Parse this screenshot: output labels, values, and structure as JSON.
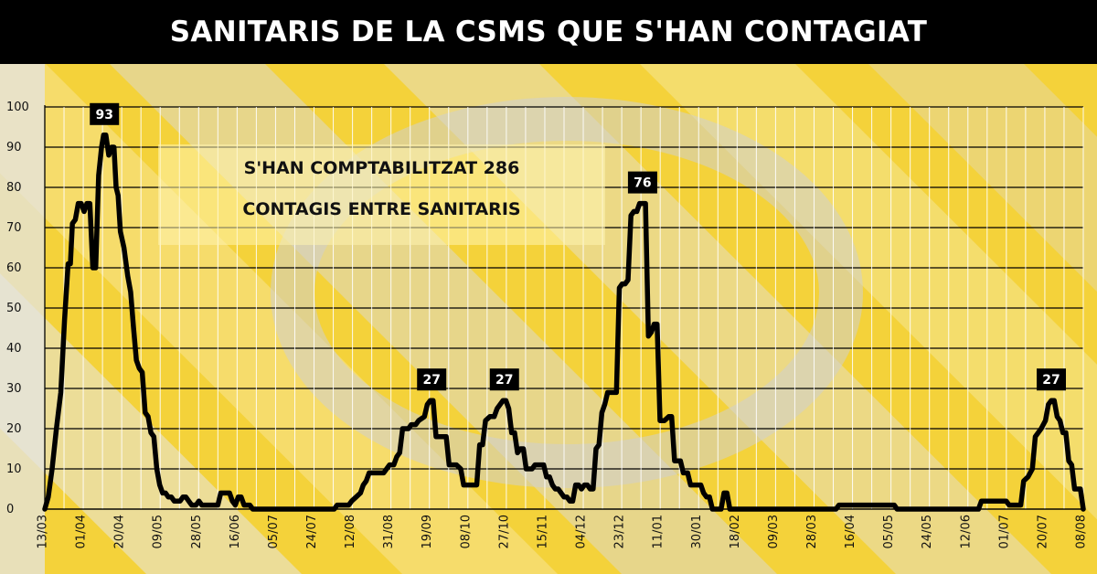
{
  "title": "SANITARIS DE LA CSMS QUE S'HAN CONTAGIAT",
  "note": {
    "line1": "S'HAN COMPTABILITZAT 286",
    "line2": "CONTAGIS ENTRE SANITARIS"
  },
  "colors": {
    "background": "#f4d23a",
    "title_bar": "#000000",
    "line": "#000000",
    "label_box": "#000000"
  },
  "chart_data": {
    "type": "line",
    "title": "SANITARIS DE LA CSMS QUE S'HAN CONTAGIAT",
    "xlabel": "",
    "ylabel": "",
    "ylim": [
      0,
      100
    ],
    "yticks": [
      0,
      10,
      20,
      30,
      40,
      50,
      60,
      70,
      80,
      90,
      100
    ],
    "grid": true,
    "x_tick_labels": [
      "13/03",
      "01/04",
      "20/04",
      "09/05",
      "28/05",
      "16/06",
      "05/07",
      "24/07",
      "12/08",
      "31/08",
      "19/09",
      "08/10",
      "27/10",
      "15/11",
      "04/12",
      "23/12",
      "11/01",
      "30/01",
      "18/02",
      "09/03",
      "28/03",
      "16/04",
      "05/05",
      "24/05",
      "12/06",
      "01/07",
      "20/07",
      "08/08"
    ],
    "points": [
      [
        0,
        0
      ],
      [
        0.12,
        3
      ],
      [
        0.25,
        10
      ],
      [
        0.4,
        20
      ],
      [
        0.55,
        29
      ],
      [
        0.68,
        47
      ],
      [
        0.8,
        61
      ],
      [
        0.88,
        61
      ],
      [
        0.95,
        71
      ],
      [
        1.05,
        72
      ],
      [
        1.15,
        76
      ],
      [
        1.25,
        76
      ],
      [
        1.35,
        74
      ],
      [
        1.45,
        76
      ],
      [
        1.55,
        76
      ],
      [
        1.65,
        60
      ],
      [
        1.75,
        60
      ],
      [
        1.85,
        83
      ],
      [
        1.95,
        90
      ],
      [
        2.02,
        93
      ],
      [
        2.1,
        93
      ],
      [
        2.2,
        88
      ],
      [
        2.3,
        90
      ],
      [
        2.38,
        90
      ],
      [
        2.45,
        80
      ],
      [
        2.52,
        78
      ],
      [
        2.6,
        69
      ],
      [
        2.72,
        65
      ],
      [
        2.85,
        58
      ],
      [
        2.95,
        54
      ],
      [
        3.05,
        45
      ],
      [
        3.15,
        37
      ],
      [
        3.25,
        35
      ],
      [
        3.35,
        34
      ],
      [
        3.45,
        24
      ],
      [
        3.55,
        23
      ],
      [
        3.65,
        19
      ],
      [
        3.75,
        18
      ],
      [
        3.85,
        10
      ],
      [
        3.95,
        6
      ],
      [
        4.05,
        4
      ],
      [
        4.15,
        4
      ],
      [
        4.25,
        3
      ],
      [
        4.35,
        3
      ],
      [
        4.45,
        2
      ],
      [
        4.55,
        2
      ],
      [
        4.65,
        2
      ],
      [
        4.75,
        3
      ],
      [
        4.85,
        3
      ],
      [
        4.95,
        2
      ],
      [
        5.05,
        1
      ],
      [
        5.2,
        1
      ],
      [
        5.3,
        2
      ],
      [
        5.4,
        1
      ],
      [
        5.6,
        1
      ],
      [
        5.8,
        1
      ],
      [
        5.95,
        1
      ],
      [
        6.05,
        4
      ],
      [
        6.25,
        4
      ],
      [
        6.35,
        4
      ],
      [
        6.45,
        2
      ],
      [
        6.55,
        1
      ],
      [
        6.65,
        3
      ],
      [
        6.75,
        3
      ],
      [
        6.85,
        1
      ],
      [
        7.05,
        1
      ],
      [
        7.15,
        0
      ],
      [
        8.5,
        0
      ],
      [
        9.95,
        0
      ],
      [
        10.05,
        1
      ],
      [
        10.45,
        1
      ],
      [
        10.55,
        2
      ],
      [
        10.7,
        3
      ],
      [
        10.85,
        4
      ],
      [
        10.95,
        6
      ],
      [
        11.05,
        7
      ],
      [
        11.15,
        9
      ],
      [
        11.5,
        9
      ],
      [
        11.65,
        9
      ],
      [
        11.75,
        10
      ],
      [
        11.85,
        11
      ],
      [
        12,
        11
      ],
      [
        12.1,
        13
      ],
      [
        12.2,
        14
      ],
      [
        12.3,
        20
      ],
      [
        12.5,
        20
      ],
      [
        12.6,
        21
      ],
      [
        12.75,
        21
      ],
      [
        12.85,
        22
      ],
      [
        13.05,
        23
      ],
      [
        13.15,
        26
      ],
      [
        13.25,
        27
      ],
      [
        13.35,
        27
      ],
      [
        13.45,
        18
      ],
      [
        13.55,
        18
      ],
      [
        13.7,
        18
      ],
      [
        13.8,
        18
      ],
      [
        13.9,
        11
      ],
      [
        14.05,
        11
      ],
      [
        14.15,
        11
      ],
      [
        14.3,
        10
      ],
      [
        14.4,
        6
      ],
      [
        14.6,
        6
      ],
      [
        14.7,
        6
      ],
      [
        14.85,
        6
      ],
      [
        14.95,
        16
      ],
      [
        15.05,
        16
      ],
      [
        15.15,
        22
      ],
      [
        15.3,
        23
      ],
      [
        15.45,
        23
      ],
      [
        15.55,
        25
      ],
      [
        15.65,
        26
      ],
      [
        15.75,
        27
      ],
      [
        15.85,
        27
      ],
      [
        15.95,
        25
      ],
      [
        16.05,
        19
      ],
      [
        16.15,
        19
      ],
      [
        16.25,
        14
      ],
      [
        16.35,
        15
      ],
      [
        16.45,
        15
      ],
      [
        16.55,
        10
      ],
      [
        16.65,
        10
      ],
      [
        16.75,
        10
      ],
      [
        16.85,
        11
      ],
      [
        17,
        11
      ],
      [
        17.15,
        11
      ],
      [
        17.25,
        8
      ],
      [
        17.35,
        8
      ],
      [
        17.45,
        6
      ],
      [
        17.55,
        5
      ],
      [
        17.65,
        5
      ],
      [
        17.75,
        4
      ],
      [
        17.85,
        3
      ],
      [
        17.95,
        3
      ],
      [
        18.05,
        2
      ],
      [
        18.15,
        2
      ],
      [
        18.25,
        6
      ],
      [
        18.35,
        6
      ],
      [
        18.45,
        5
      ],
      [
        18.55,
        6
      ],
      [
        18.65,
        6
      ],
      [
        18.75,
        5
      ],
      [
        18.85,
        5
      ],
      [
        18.95,
        15
      ],
      [
        19.05,
        16
      ],
      [
        19.15,
        24
      ],
      [
        19.25,
        26
      ],
      [
        19.35,
        29
      ],
      [
        19.45,
        29
      ],
      [
        19.55,
        29
      ],
      [
        19.65,
        29
      ],
      [
        19.75,
        55
      ],
      [
        19.85,
        56
      ],
      [
        19.95,
        56
      ],
      [
        20.05,
        57
      ],
      [
        20.15,
        73
      ],
      [
        20.25,
        74
      ],
      [
        20.35,
        74
      ],
      [
        20.45,
        76
      ],
      [
        20.55,
        76
      ],
      [
        20.65,
        76
      ],
      [
        20.75,
        43
      ],
      [
        20.85,
        44
      ],
      [
        20.95,
        46
      ],
      [
        21.05,
        46
      ],
      [
        21.15,
        22
      ],
      [
        21.3,
        22
      ],
      [
        21.45,
        23
      ],
      [
        21.55,
        23
      ],
      [
        21.65,
        12
      ],
      [
        21.85,
        12
      ],
      [
        21.95,
        9
      ],
      [
        22.1,
        9
      ],
      [
        22.2,
        6
      ],
      [
        22.3,
        6
      ],
      [
        22.45,
        6
      ],
      [
        22.55,
        6
      ],
      [
        22.65,
        4
      ],
      [
        22.75,
        3
      ],
      [
        22.85,
        3
      ],
      [
        22.95,
        0
      ],
      [
        23.15,
        0
      ],
      [
        23.25,
        0
      ],
      [
        23.35,
        4
      ],
      [
        23.45,
        4
      ],
      [
        23.55,
        0
      ],
      [
        24.5,
        0
      ],
      [
        26.5,
        0
      ],
      [
        27.2,
        0
      ],
      [
        27.3,
        1
      ],
      [
        27.5,
        1
      ],
      [
        28.5,
        1
      ],
      [
        29.2,
        1
      ],
      [
        29.3,
        0
      ],
      [
        31.5,
        0
      ],
      [
        32.1,
        0
      ],
      [
        32.2,
        2
      ],
      [
        32.5,
        2
      ],
      [
        32.8,
        2
      ],
      [
        33.05,
        2
      ],
      [
        33.15,
        1
      ],
      [
        33.3,
        1
      ],
      [
        33.55,
        1
      ],
      [
        33.65,
        7
      ],
      [
        33.8,
        8
      ],
      [
        33.95,
        10
      ],
      [
        34.05,
        18
      ],
      [
        34.15,
        19
      ],
      [
        34.25,
        20
      ],
      [
        34.4,
        22
      ],
      [
        34.5,
        26
      ],
      [
        34.6,
        27
      ],
      [
        34.7,
        27
      ],
      [
        34.8,
        23
      ],
      [
        34.9,
        22
      ],
      [
        35,
        19
      ],
      [
        35.1,
        19
      ],
      [
        35.2,
        12
      ],
      [
        35.3,
        11
      ],
      [
        35.4,
        5
      ],
      [
        35.5,
        5
      ],
      [
        35.6,
        5
      ],
      [
        35.7,
        0
      ]
    ],
    "peaks": [
      {
        "x": 2.05,
        "y": 93,
        "label": "93"
      },
      {
        "x": 13.3,
        "y": 27,
        "label": "27"
      },
      {
        "x": 15.8,
        "y": 27,
        "label": "27"
      },
      {
        "x": 20.55,
        "y": 76,
        "label": "76"
      },
      {
        "x": 34.6,
        "y": 27,
        "label": "27"
      }
    ],
    "xlim": [
      0,
      35.7
    ]
  }
}
